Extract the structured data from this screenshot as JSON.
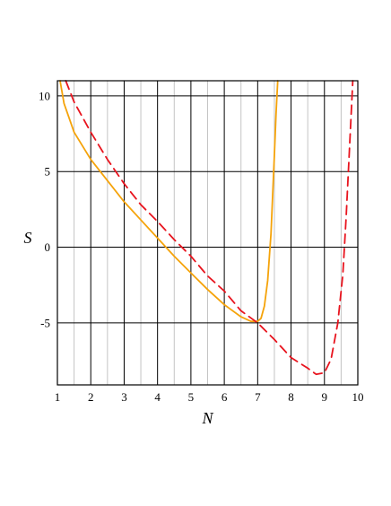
{
  "chart_data": {
    "type": "line",
    "title": "",
    "xlabel": "N",
    "ylabel": "S",
    "xlim": [
      1,
      10
    ],
    "ylim": [
      -9.1,
      11
    ],
    "x_ticks": [
      "1",
      "2",
      "3",
      "4",
      "5",
      "6",
      "7",
      "8",
      "9",
      "10"
    ],
    "y_ticks": [
      "-5",
      "0",
      "5",
      "10"
    ],
    "grid": true,
    "legend": "none",
    "series": [
      {
        "color": "#f5a30a",
        "style": "solid",
        "x": [
          1.08,
          1.2,
          1.5,
          2.0,
          2.5,
          3.0,
          3.5,
          4.0,
          4.5,
          5.0,
          5.5,
          6.0,
          6.5,
          6.8,
          7.0,
          7.1,
          7.2,
          7.3,
          7.4,
          7.5,
          7.55,
          7.6
        ],
        "y": [
          11.0,
          9.5,
          7.6,
          5.8,
          4.4,
          3.0,
          1.8,
          0.6,
          -0.6,
          -1.7,
          -2.8,
          -3.8,
          -4.6,
          -4.9,
          -4.9,
          -4.7,
          -3.9,
          -2.2,
          0.9,
          6.0,
          8.8,
          11.0
        ]
      },
      {
        "color": "#e8141e",
        "style": "dashed",
        "x": [
          1.25,
          1.5,
          2.0,
          2.5,
          3.0,
          3.5,
          4.0,
          4.5,
          5.0,
          5.5,
          6.0,
          6.5,
          7.0,
          7.5,
          8.0,
          8.5,
          8.75,
          9.0,
          9.2,
          9.4,
          9.55,
          9.65,
          9.75,
          9.85
        ],
        "y": [
          11.0,
          9.6,
          7.6,
          5.8,
          4.2,
          2.8,
          1.7,
          0.5,
          -0.6,
          -1.9,
          -2.9,
          -4.2,
          -5.0,
          -6.1,
          -7.3,
          -8.0,
          -8.4,
          -8.3,
          -7.4,
          -5.0,
          -1.8,
          2.0,
          6.5,
          11.0
        ]
      }
    ]
  }
}
